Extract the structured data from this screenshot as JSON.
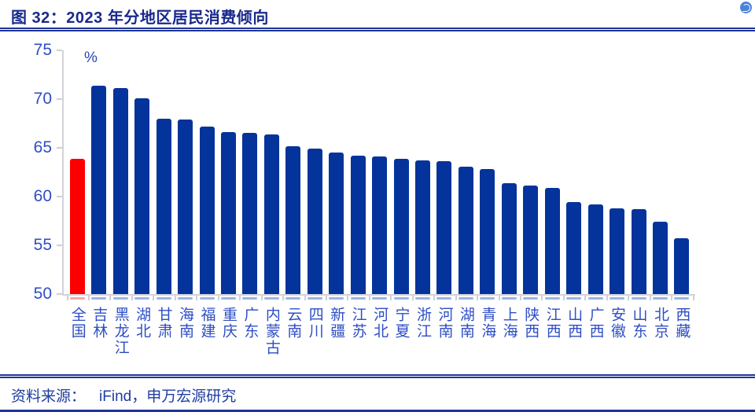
{
  "header": {
    "title": "图 32：2023 年分地区居民消费倾向"
  },
  "icons": {
    "top_right_badge": "circle-brand-badge"
  },
  "colors": {
    "title_navy": "#19298C",
    "rule_navy": "#1E3499",
    "label_blue": "#2E4EC5",
    "axis_gray": "#D2D2D9",
    "bar_blue": "#04339B",
    "bar_red": "#FC0000",
    "underline_blue": "#9FB4E2",
    "underline_red": "#F2A9A9",
    "badge_blue": "#4C83DA"
  },
  "chart_data": {
    "type": "bar",
    "title": "图 32：2023 年分地区居民消费倾向",
    "unit_label": "%",
    "xlabel": "",
    "ylabel": "%",
    "ylim": [
      50,
      75
    ],
    "yticks": [
      50,
      55,
      60,
      65,
      70,
      75
    ],
    "grid": false,
    "legend": "none",
    "categories": [
      "全国",
      "吉林",
      "黑龙江",
      "湖北",
      "甘肃",
      "海南",
      "福建",
      "重庆",
      "广东",
      "内蒙古",
      "云南",
      "四川",
      "新疆",
      "江苏",
      "河北",
      "宁夏",
      "浙江",
      "河南",
      "湖南",
      "青海",
      "上海",
      "陕西",
      "江西",
      "山西",
      "广西",
      "安徽",
      "山东",
      "北京",
      "西藏"
    ],
    "values": [
      63.9,
      71.4,
      71.1,
      70.1,
      68.0,
      67.9,
      67.2,
      66.6,
      66.5,
      66.4,
      65.2,
      64.9,
      64.5,
      64.2,
      64.1,
      63.9,
      63.7,
      63.6,
      63.1,
      62.8,
      61.4,
      61.1,
      60.9,
      59.4,
      59.2,
      58.8,
      58.7,
      57.4,
      55.7
    ],
    "highlight_index": 0,
    "highlight_category": "全国",
    "bar_color": "#04339B",
    "highlight_color": "#FC0000",
    "bar_underline_color": "#9FB4E2",
    "highlight_underline_color": "#F2A9A9"
  },
  "footer": {
    "source_label": "资料来源：",
    "source_text": "iFind，申万宏源研究"
  }
}
